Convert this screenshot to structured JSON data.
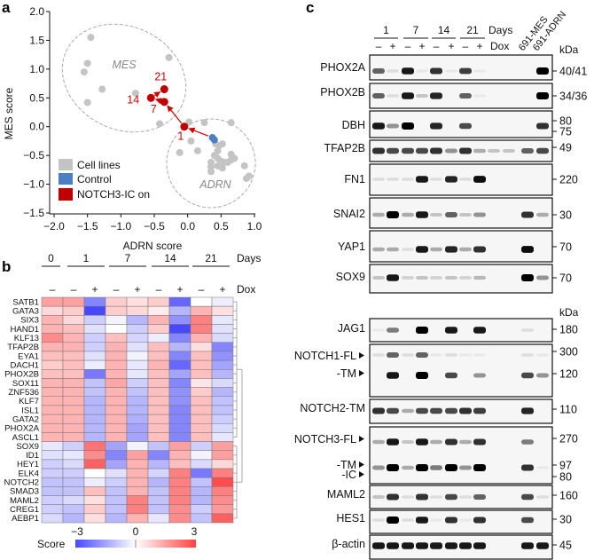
{
  "panel_labels": {
    "a": "a",
    "b": "b",
    "c": "c"
  },
  "chart_data": [
    {
      "type": "scatter",
      "xlabel": "ADRN score",
      "ylabel": "MES score",
      "xlim": [
        -2.0,
        1.0
      ],
      "ylim": [
        -1.5,
        2.0
      ],
      "xticks": [
        "−2.0",
        "−1.5",
        "−1.0",
        "−0.5",
        "0.0",
        "0.5",
        "1.0"
      ],
      "xtick_values": [
        -2.0,
        -1.5,
        -1.0,
        -0.5,
        0.0,
        0.5,
        1.0
      ],
      "yticks": [
        "2.0",
        "1.5",
        "1.0",
        "0.5",
        "0.0",
        "−0.5",
        "−1.0",
        "−1.5"
      ],
      "ytick_values": [
        2.0,
        1.5,
        1.0,
        0.5,
        0.0,
        -0.5,
        -1.0,
        -1.5
      ],
      "cluster_labels": {
        "mes": "MES",
        "adrn": "ADRN"
      },
      "legend": [
        {
          "label": "Cell lines",
          "color": "#c4c4c4"
        },
        {
          "label": "Control",
          "color": "#4a7fc1"
        },
        {
          "label": "NOTCH3-IC on",
          "color": "#c00000"
        }
      ],
      "cell_lines": [
        [
          -1.45,
          1.55
        ],
        [
          -1.5,
          1.1
        ],
        [
          -1.55,
          0.95
        ],
        [
          -1.28,
          0.65
        ],
        [
          -1.5,
          0.42
        ],
        [
          -0.78,
          0.58
        ],
        [
          -0.28,
          1.2
        ],
        [
          -0.42,
          0.05
        ],
        [
          0.02,
          0.08
        ],
        [
          0.25,
          0.07
        ],
        [
          0.65,
          0.07
        ],
        [
          0.05,
          -0.25
        ],
        [
          -0.12,
          -0.45
        ],
        [
          0.15,
          -0.42
        ],
        [
          0.42,
          -0.3
        ],
        [
          0.47,
          -0.33
        ],
        [
          0.52,
          -0.3
        ],
        [
          0.45,
          -0.42
        ],
        [
          0.4,
          -0.5
        ],
        [
          0.45,
          -0.55
        ],
        [
          0.5,
          -0.6
        ],
        [
          0.35,
          -0.62
        ],
        [
          0.55,
          -0.62
        ],
        [
          0.6,
          -0.62
        ],
        [
          0.65,
          -0.58
        ],
        [
          0.7,
          -0.55
        ],
        [
          0.65,
          -0.48
        ],
        [
          0.35,
          -0.7
        ],
        [
          0.35,
          -0.78
        ],
        [
          0.45,
          -0.68
        ],
        [
          0.52,
          -0.72
        ],
        [
          0.85,
          -0.68
        ],
        [
          0.88,
          -0.9
        ],
        [
          0.92,
          -0.86
        ]
      ],
      "control": [
        [
          0.37,
          -0.19
        ],
        [
          0.4,
          -0.23
        ]
      ],
      "notch3_ic_on": [
        {
          "day": "1",
          "x": -0.05,
          "y": 0.0
        },
        {
          "day": "7",
          "x": -0.35,
          "y": 0.43
        },
        {
          "day": "14",
          "x": -0.55,
          "y": 0.5
        },
        {
          "day": "21",
          "x": -0.35,
          "y": 0.65
        }
      ]
    },
    {
      "type": "heatmap",
      "days": [
        "0",
        "1",
        "7",
        "14",
        "21"
      ],
      "days_label": "Days",
      "dox_label": "Dox",
      "dox": [
        "–",
        "–",
        "+",
        "–",
        "+",
        "–",
        "+",
        "–",
        "+"
      ],
      "rows": [
        "SATB1",
        "GATA3",
        "SIX3",
        "HAND1",
        "KLF13",
        "TFAP2B",
        "EYA1",
        "DACH1",
        "PHOX2B",
        "SOX11",
        "ZNF536",
        "KLF7",
        "ISL1",
        "GATA2",
        "PHOX2A",
        "ASCL1",
        "SOX9",
        "ID1",
        "HEY1",
        "ELK4",
        "NOTCH2",
        "SMAD3",
        "MAML2",
        "CREG1",
        "AEBP1"
      ],
      "values": [
        [
          1.5,
          1.5,
          -2,
          0.8,
          0.5,
          0.8,
          -2.5,
          0,
          -0.3
        ],
        [
          0.6,
          0.8,
          -3,
          0.8,
          0.6,
          0.3,
          -1.2,
          1.2,
          0.5
        ],
        [
          1.2,
          0.6,
          -0.8,
          -0.2,
          -1.2,
          1.2,
          -1.8,
          2,
          -0.4
        ],
        [
          1.2,
          1,
          -0.5,
          0,
          -0.8,
          0.8,
          -3,
          2,
          -0.5
        ],
        [
          1.8,
          1.2,
          -0.8,
          1,
          -0.7,
          -0.3,
          -2,
          1.2,
          -0.6
        ],
        [
          1.2,
          1.2,
          -0.8,
          1.2,
          -0.5,
          1,
          -1.2,
          0.5,
          -2
        ],
        [
          1,
          1,
          -0.5,
          1.2,
          -0.2,
          1,
          -2,
          1,
          -1.8
        ],
        [
          0.8,
          1,
          -0.3,
          1.2,
          -0.4,
          1.2,
          -2.5,
          1,
          -1.5
        ],
        [
          1,
          1,
          -2.2,
          1.2,
          -0.4,
          1,
          -1.5,
          1,
          -1.2
        ],
        [
          1.2,
          1.2,
          -1,
          1.4,
          -0.8,
          1,
          -2,
          0.4,
          -0.6
        ],
        [
          1.2,
          1.2,
          -1,
          1.2,
          -1,
          1,
          -1.8,
          0.8,
          -1.2
        ],
        [
          1.2,
          1.2,
          -1.2,
          1.2,
          -1.2,
          1,
          -1.8,
          1,
          -1
        ],
        [
          1.2,
          1.2,
          -1.2,
          1.2,
          -1.2,
          1,
          -2,
          1,
          -1
        ],
        [
          1.2,
          1.2,
          -1.2,
          1.2,
          -1.3,
          1,
          -2,
          1,
          -0.8
        ],
        [
          1.2,
          1.2,
          -1.2,
          1.2,
          -1.5,
          1,
          -2,
          1,
          -0.6
        ],
        [
          1.2,
          1.2,
          -1.2,
          1.2,
          -1.5,
          1,
          -2,
          1,
          -0.4
        ],
        [
          -0.4,
          -0.8,
          2.2,
          -1.5,
          -0.2,
          -1,
          1.5,
          -0.8,
          1.5
        ],
        [
          -0.5,
          -0.4,
          1.8,
          -2,
          1.5,
          -2,
          1.2,
          -0.2,
          1.5
        ],
        [
          -0.8,
          -0.6,
          2.5,
          -1.5,
          1.2,
          -1.2,
          1,
          -0.6,
          0.6
        ],
        [
          -0.8,
          -0.8,
          0,
          -0.5,
          1.2,
          -0.7,
          2,
          -2.2,
          2
        ],
        [
          -1,
          -1,
          -0.3,
          -0.8,
          1.2,
          -1.2,
          2,
          -1,
          2.8
        ],
        [
          -1,
          -1,
          1,
          -1,
          1.2,
          -1,
          2,
          -1.2,
          2
        ],
        [
          -0.8,
          -0.6,
          0.5,
          -1,
          2,
          -1,
          2,
          -1.2,
          1.8
        ],
        [
          -0.8,
          -1,
          0.8,
          -1,
          2,
          -1,
          1.8,
          -0.8,
          1.6
        ],
        [
          -0.6,
          -1.2,
          0.5,
          -1.2,
          1.2,
          -0.4,
          1.8,
          -1,
          2.5
        ]
      ],
      "scale_label": "Score",
      "scale_ticks": [
        "−3",
        "0",
        "3"
      ],
      "scale_range": [
        -3,
        3
      ],
      "colors": {
        "low": "#2828ff",
        "mid": "#ffffff",
        "high": "#ff1e1e"
      }
    }
  ],
  "blot": {
    "days": [
      "1",
      "7",
      "14",
      "21"
    ],
    "days_label": "Days",
    "dox_label": "Dox",
    "dox": [
      "–",
      "+",
      "–",
      "+",
      "–",
      "+",
      "–",
      "+"
    ],
    "controls": [
      "691-MES",
      "691-ADRN"
    ],
    "kda_label": "kDa",
    "panels": [
      {
        "name": "PHOX2A",
        "kda": [
          "40/41"
        ],
        "bands": [
          [
            0.6,
            0.1,
            0.9,
            0.05,
            0.8,
            0.05,
            0.75,
            0.05,
            0,
            0,
            0,
            1
          ]
        ]
      },
      {
        "name": "PHOX2B",
        "kda": [
          "34/36"
        ],
        "bands": [
          [
            0.6,
            0.1,
            0.9,
            0.2,
            0.85,
            0,
            0.6,
            0.05,
            0,
            0,
            0,
            1
          ]
        ]
      },
      {
        "name": "DBH",
        "kda": [
          "80",
          "75"
        ],
        "bands": [
          [
            0.9,
            0.4,
            1,
            0,
            0.85,
            0,
            0.7,
            0,
            0,
            0,
            0,
            0.8
          ]
        ]
      },
      {
        "name": "TFAP2B",
        "kda": [
          "49"
        ],
        "bands": [
          [
            0.8,
            0.7,
            0.7,
            0.7,
            0.8,
            0.4,
            0.8,
            0.3,
            0.2,
            0.2,
            0.6,
            0.7
          ]
        ]
      },
      {
        "name": "FN1",
        "kda": [
          "220"
        ],
        "bands": [
          [
            0.1,
            0.1,
            0.1,
            0.9,
            0.1,
            0.85,
            0.1,
            0.95,
            0,
            0,
            0,
            0
          ]
        ]
      },
      {
        "name": "SNAI2",
        "kda": [
          "30"
        ],
        "bands": [
          [
            0.3,
            1,
            0.3,
            0.9,
            0.2,
            0.6,
            0.2,
            0.4,
            0,
            0,
            0.8,
            0.3
          ]
        ]
      },
      {
        "name": "YAP1",
        "kda": [
          "70"
        ],
        "bands": [
          [
            0.3,
            0.3,
            0.1,
            0.9,
            0.3,
            0.85,
            0.3,
            0.8,
            0,
            0,
            0.95,
            0
          ]
        ]
      },
      {
        "name": "SOX9",
        "kda": [
          "70"
        ],
        "bands": [
          [
            0.2,
            0.9,
            0.15,
            0.2,
            0.15,
            0.2,
            0.15,
            0.25,
            0,
            0,
            1,
            0.4
          ]
        ]
      },
      {
        "name": "JAG1",
        "kda": [
          "180"
        ],
        "bands": [
          [
            0.05,
            0.5,
            0,
            1,
            0,
            0.9,
            0,
            0.9,
            0,
            0,
            0.1,
            0
          ]
        ]
      },
      {
        "name": "NOTCH1-FL",
        "sub": "-TM",
        "kda": [
          "300",
          "120"
        ],
        "bands": [
          [
            0.1,
            0.6,
            0.1,
            0.6,
            0.05,
            0.1,
            0.05,
            0.05,
            0,
            0,
            0.1,
            0.05
          ],
          [
            0,
            0.9,
            0,
            1,
            0,
            0.7,
            0,
            0.4,
            0,
            0,
            0.7,
            0.4
          ]
        ]
      },
      {
        "name": "NOTCH2-TM",
        "kda": [
          "110"
        ],
        "bands": [
          [
            0.8,
            0.7,
            0.3,
            0.7,
            0.7,
            0.7,
            0.8,
            0.75,
            0,
            0,
            0.85,
            0
          ]
        ]
      },
      {
        "name": "NOTCH3-FL",
        "sub": "-TM",
        "sub2": "-IC",
        "kda": [
          "270",
          "97",
          "80"
        ],
        "bands": [
          [
            0.3,
            0.9,
            0.2,
            0.9,
            0.3,
            0.8,
            0.3,
            0.8,
            0,
            0,
            0.5,
            0
          ],
          [
            0.4,
            1,
            0.3,
            1,
            0.5,
            1,
            0.4,
            1,
            0,
            0,
            0.8,
            0.05
          ]
        ]
      },
      {
        "name": "MAML2",
        "kda": [
          "160"
        ],
        "bands": [
          [
            0.2,
            0.8,
            0.1,
            0.8,
            0.1,
            0.7,
            0.1,
            0.6,
            0,
            0,
            0.7,
            0.1
          ]
        ]
      },
      {
        "name": "HES1",
        "kda": [
          "30"
        ],
        "bands": [
          [
            0.1,
            1,
            0.1,
            0.9,
            0.05,
            0.8,
            0.05,
            0.8,
            0,
            0,
            0.7,
            0
          ]
        ]
      },
      {
        "name": "β-actin",
        "kda": [
          "45"
        ],
        "bands": [
          [
            0.9,
            0.9,
            0.9,
            0.9,
            0.9,
            0.9,
            0.9,
            0.9,
            0,
            0,
            0.9,
            0.9
          ]
        ]
      }
    ]
  }
}
